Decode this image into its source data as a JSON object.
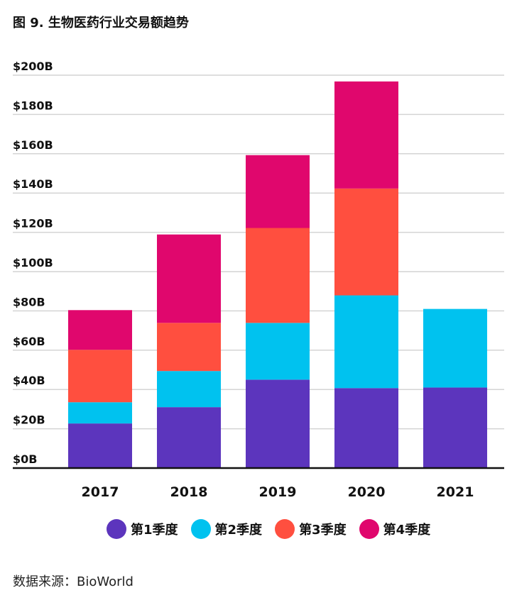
{
  "title": "图 9. 生物医药行业交易额趋势",
  "source": "数据来源：BioWorld",
  "chart_data": {
    "type": "bar",
    "stacked": true,
    "categories": [
      "2017",
      "2018",
      "2019",
      "2020",
      "2021"
    ],
    "series": [
      {
        "name": "第1季度",
        "color": "#5c35bd",
        "values": [
          22.7,
          31,
          45,
          40.7,
          41
        ]
      },
      {
        "name": "第2季度",
        "color": "#00c2ef",
        "values": [
          10.8,
          18.4,
          28.9,
          47.2,
          40
        ]
      },
      {
        "name": "第3季度",
        "color": "#ff4f3f",
        "values": [
          26.7,
          24.5,
          48.3,
          54.4,
          null
        ]
      },
      {
        "name": "第4季度",
        "color": "#e0076d",
        "values": [
          20.2,
          45,
          37.1,
          54.5,
          null
        ]
      }
    ],
    "yticks": [
      "$0B",
      "$20B",
      "$40B",
      "$60B",
      "$80B",
      "$100B",
      "$120B",
      "$140B",
      "$160B",
      "$180B",
      "$200B"
    ],
    "ylim": [
      0,
      200
    ],
    "grid": true,
    "legend": "bottom"
  }
}
